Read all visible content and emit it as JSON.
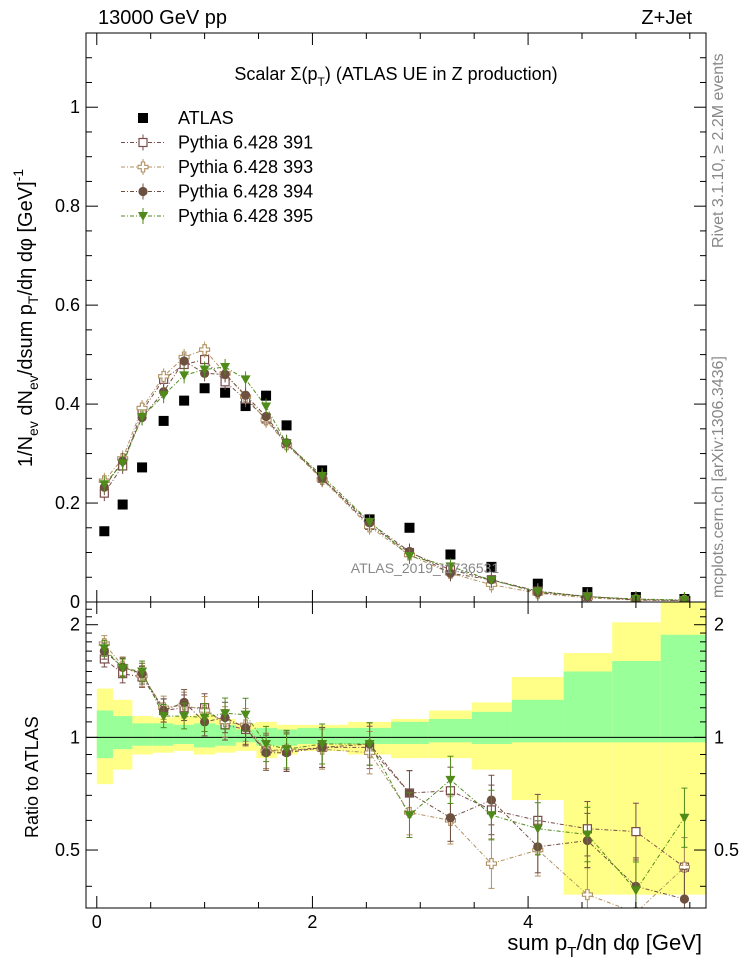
{
  "header": {
    "left": "13000 GeV pp",
    "right": "Z+Jet"
  },
  "side_labels": {
    "rivet": "Rivet 3.1.10, ≥ 2.2M events",
    "mcplots": "mcplots.cern.ch [arXiv:1306.3436]"
  },
  "chart_data": [
    {
      "type": "scatter",
      "panel": "main",
      "title": "Scalar Σ(p_T) (ATLAS UE in Z production)",
      "xlabel": "sum p_T/dη dφ [GeV]",
      "ylabel": "1/N_ev dN_ev/dsum p_T/dη dφ [GeV]^-1",
      "ylim": [
        0,
        1.15
      ],
      "xlim": [
        -0.1,
        5.65
      ],
      "yticks": [
        "0",
        "0.2",
        "0.4",
        "0.6",
        "0.8",
        "1"
      ],
      "xticks": [
        "0",
        "2",
        "4"
      ],
      "watermark": "ATLAS_2019_I1736531",
      "legend_position": "top-left",
      "x": [
        0.07,
        0.24,
        0.42,
        0.62,
        0.81,
        1.0,
        1.19,
        1.38,
        1.57,
        1.76,
        2.09,
        2.53,
        2.9,
        3.28,
        3.66,
        4.09,
        4.55,
        5.0,
        5.45
      ],
      "series": [
        {
          "name": "ATLAS",
          "marker": "square-filled",
          "color": "#000000",
          "values": [
            0.143,
            0.197,
            0.272,
            0.366,
            0.407,
            0.432,
            0.423,
            0.396,
            0.417,
            0.357,
            0.266,
            0.167,
            0.15,
            0.096,
            0.071,
            0.037,
            0.02,
            0.01,
            0.006
          ]
        },
        {
          "name": "Pythia 6.428 391",
          "marker": "square-open",
          "color": "#7a4b4b",
          "values": [
            0.22,
            0.275,
            0.386,
            0.45,
            0.48,
            0.49,
            0.445,
            0.41,
            0.37,
            0.32,
            0.25,
            0.155,
            0.1,
            0.065,
            0.045,
            0.022,
            0.011,
            0.005,
            0.003
          ]
        },
        {
          "name": "Pythia 6.428 393",
          "marker": "cross-open",
          "color": "#b09060",
          "values": [
            0.245,
            0.29,
            0.392,
            0.456,
            0.495,
            0.51,
            0.462,
            0.415,
            0.368,
            0.318,
            0.248,
            0.152,
            0.095,
            0.058,
            0.035,
            0.018,
            0.008,
            0.004,
            0.003
          ]
        },
        {
          "name": "Pythia 6.428 394",
          "marker": "circle-filled",
          "color": "#6e5040",
          "values": [
            0.232,
            0.285,
            0.373,
            0.425,
            0.487,
            0.462,
            0.46,
            0.418,
            0.375,
            0.322,
            0.25,
            0.16,
            0.102,
            0.058,
            0.045,
            0.019,
            0.011,
            0.004,
            0.003
          ]
        },
        {
          "name": "Pythia 6.428 395",
          "marker": "triangle-down-filled",
          "color": "#4f8a1a",
          "values": [
            0.238,
            0.28,
            0.374,
            0.418,
            0.458,
            0.47,
            0.475,
            0.45,
            0.395,
            0.32,
            0.255,
            0.162,
            0.093,
            0.072,
            0.044,
            0.021,
            0.011,
            0.006,
            0.004
          ]
        }
      ]
    },
    {
      "type": "scatter",
      "panel": "ratio",
      "ylabel": "Ratio to ATLAS",
      "ylim": [
        0.35,
        2.3
      ],
      "yticks": [
        "0.5",
        "1",
        "2"
      ],
      "band_colors": {
        "inner": "#99ff99",
        "outer": "#ffff88"
      },
      "bin_edges": [
        0.0,
        0.15,
        0.33,
        0.52,
        0.71,
        0.9,
        1.1,
        1.29,
        1.48,
        1.67,
        1.86,
        2.33,
        2.73,
        3.08,
        3.48,
        3.85,
        4.33,
        4.78,
        5.23,
        5.66
      ],
      "band_inner": [
        [
          0.88,
          1.18
        ],
        [
          0.93,
          1.14
        ],
        [
          0.95,
          1.09
        ],
        [
          0.95,
          1.09
        ],
        [
          0.96,
          1.08
        ],
        [
          0.94,
          1.09
        ],
        [
          0.95,
          1.08
        ],
        [
          0.97,
          1.05
        ],
        [
          0.95,
          1.06
        ],
        [
          0.95,
          1.05
        ],
        [
          0.96,
          1.06
        ],
        [
          0.96,
          1.06
        ],
        [
          0.96,
          1.1
        ],
        [
          0.97,
          1.12
        ],
        [
          0.96,
          1.17
        ],
        [
          0.97,
          1.26
        ],
        [
          0.97,
          1.5
        ],
        [
          0.97,
          1.6
        ],
        [
          0.97,
          1.88
        ]
      ],
      "band_outer": [
        [
          0.75,
          1.35
        ],
        [
          0.82,
          1.26
        ],
        [
          0.9,
          1.14
        ],
        [
          0.91,
          1.13
        ],
        [
          0.92,
          1.14
        ],
        [
          0.9,
          1.15
        ],
        [
          0.91,
          1.12
        ],
        [
          0.92,
          1.09
        ],
        [
          0.88,
          1.1
        ],
        [
          0.9,
          1.08
        ],
        [
          0.92,
          1.08
        ],
        [
          0.9,
          1.1
        ],
        [
          0.88,
          1.12
        ],
        [
          0.88,
          1.18
        ],
        [
          0.82,
          1.24
        ],
        [
          0.68,
          1.45
        ],
        [
          0.38,
          1.68
        ],
        [
          0.38,
          2.03
        ],
        [
          0.38,
          2.3
        ]
      ],
      "series": [
        {
          "name": "Pythia 6.428 391",
          "values": [
            1.62,
            1.48,
            1.45,
            1.18,
            1.2,
            1.2,
            1.08,
            1.05,
            0.92,
            0.92,
            0.94,
            0.94,
            0.71,
            0.72,
            0.64,
            0.6,
            0.57,
            0.56,
            0.45
          ]
        },
        {
          "name": "Pythia 6.428 393",
          "values": [
            1.78,
            1.55,
            1.46,
            1.2,
            1.22,
            1.18,
            1.1,
            1.08,
            0.92,
            0.93,
            0.93,
            0.91,
            0.63,
            0.6,
            0.46,
            0.5,
            0.38,
            0.34,
            0.45
          ]
        },
        {
          "name": "Pythia 6.428 394",
          "values": [
            1.7,
            1.54,
            1.48,
            1.18,
            1.24,
            1.1,
            1.13,
            1.06,
            0.91,
            0.91,
            0.94,
            0.96,
            0.71,
            0.61,
            0.68,
            0.51,
            0.53,
            0.4,
            0.37
          ]
        },
        {
          "name": "Pythia 6.428 395",
          "values": [
            1.73,
            1.53,
            1.5,
            1.14,
            1.14,
            1.13,
            1.16,
            1.15,
            0.96,
            0.93,
            0.96,
            0.96,
            0.62,
            0.77,
            0.62,
            0.57,
            0.55,
            0.39,
            0.61
          ]
        }
      ]
    }
  ]
}
